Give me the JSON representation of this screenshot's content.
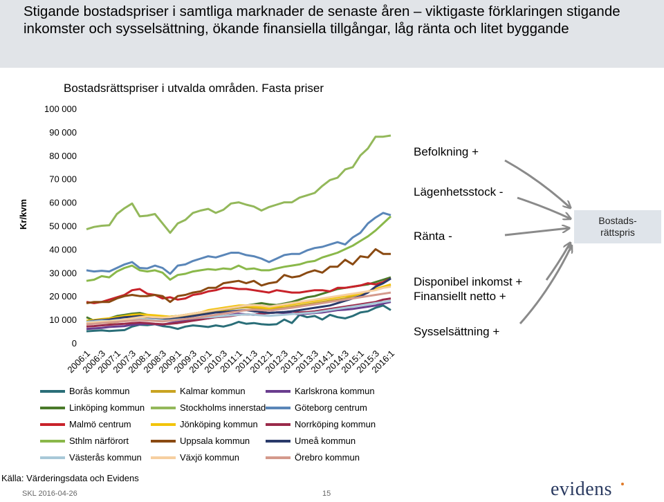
{
  "slide": {
    "heading": "Stigande bostadspriser i samtliga marknader de senaste åren – viktigaste förklaringen stigande inkomster och sysselsättning, ökande finansiella tillgångar, låg ränta och litet byggande",
    "source": "Källa: Värderingsdata och Evidens",
    "footer_left": "SKL 2016-04-26",
    "page_number": "15",
    "logo_text": "evidens"
  },
  "factors": [
    {
      "label": "Befolkning +"
    },
    {
      "label": "Lägenhetsstock -"
    },
    {
      "label": "Ränta -"
    },
    {
      "label": "Disponibel inkomst +"
    },
    {
      "label": "Finansiellt netto +"
    },
    {
      "label": "Sysselsättning +"
    }
  ],
  "result_box": {
    "line1": "Bostads-",
    "line2": "rättspris"
  },
  "chart_data": {
    "type": "line",
    "title": "Bostadsrättspriser i utvalda områden. Fasta priser",
    "ylabel": "Kr/kvm",
    "xlabel": "",
    "ylim": [
      0,
      100000
    ],
    "yticks": [
      0,
      10000,
      20000,
      30000,
      40000,
      50000,
      60000,
      70000,
      80000,
      90000,
      100000
    ],
    "ytick_labels": [
      "0",
      "10 000",
      "20 000",
      "30 000",
      "40 000",
      "50 000",
      "60 000",
      "70 000",
      "80 000",
      "90 000",
      "100 000"
    ],
    "x_tick_labels": [
      "2006:1",
      "2006:3",
      "2007:1",
      "2007:3",
      "2008:1",
      "2008:3",
      "2009:1",
      "2009:3",
      "2010:1",
      "2010:3",
      "2011:1",
      "2011:3",
      "2012:1",
      "2012:3",
      "2013:1",
      "2013:3",
      "2014:1",
      "2014:3",
      "2015:1",
      "2015:3",
      "2016:1"
    ],
    "x": [
      "2006:1",
      "2006:2",
      "2006:3",
      "2006:4",
      "2007:1",
      "2007:2",
      "2007:3",
      "2007:4",
      "2008:1",
      "2008:2",
      "2008:3",
      "2008:4",
      "2009:1",
      "2009:2",
      "2009:3",
      "2009:4",
      "2010:1",
      "2010:2",
      "2010:3",
      "2010:4",
      "2011:1",
      "2011:2",
      "2011:3",
      "2011:4",
      "2012:1",
      "2012:2",
      "2012:3",
      "2012:4",
      "2013:1",
      "2013:2",
      "2013:3",
      "2013:4",
      "2014:1",
      "2014:2",
      "2014:3",
      "2014:4",
      "2015:1",
      "2015:2",
      "2015:3",
      "2015:4",
      "2016:1"
    ],
    "grid": false,
    "legend_position": "bottom",
    "series": [
      {
        "name": "Borås kommun",
        "color": "#2a6e78",
        "values": [
          5000,
          5200,
          5400,
          5100,
          5300,
          5500,
          7000,
          7800,
          7600,
          8000,
          7200,
          6800,
          6000,
          7000,
          7500,
          7200,
          6800,
          7500,
          7000,
          7800,
          9000,
          8200,
          8500,
          8000,
          7800,
          8000,
          10000,
          8500,
          12000,
          11000,
          11500,
          10000,
          12000,
          11000,
          10500,
          11500,
          13000,
          13500,
          15000,
          16000,
          14000
        ]
      },
      {
        "name": "Kalmar kommun",
        "color": "#c9a422",
        "values": [
          8000,
          8500,
          8800,
          8600,
          9000,
          9500,
          10000,
          10500,
          11000,
          11500,
          11000,
          10800,
          11000,
          11500,
          12000,
          12500,
          13000,
          13500,
          14000,
          14500,
          15000,
          15200,
          15000,
          14800,
          14500,
          14800,
          15000,
          15500,
          16000,
          16500,
          17000,
          17500,
          18000,
          18500,
          19000,
          20000,
          21000,
          22000,
          23000,
          24000,
          24500
        ]
      },
      {
        "name": "Karlskrona kommun",
        "color": "#6a3d8e",
        "values": [
          6000,
          6200,
          6400,
          6800,
          7000,
          7200,
          7800,
          8000,
          8200,
          8000,
          7800,
          8500,
          9000,
          9500,
          10000,
          10200,
          10500,
          11000,
          11500,
          12000,
          12500,
          12200,
          12000,
          12500,
          12800,
          13000,
          12800,
          12500,
          12200,
          12500,
          12800,
          13000,
          13500,
          14000,
          14200,
          14500,
          15000,
          15500,
          16000,
          16800,
          17500
        ]
      },
      {
        "name": "Linköping kommun",
        "color": "#4a7a2a",
        "values": [
          11000,
          9500,
          9800,
          10500,
          11500,
          12000,
          12500,
          12800,
          12000,
          11500,
          11000,
          11200,
          11500,
          12000,
          12500,
          13000,
          13500,
          14000,
          14500,
          15000,
          15500,
          16000,
          16500,
          17000,
          16500,
          16200,
          16800,
          17500,
          18500,
          19500,
          20000,
          21000,
          22000,
          23000,
          23500,
          24000,
          24500,
          25000,
          26000,
          27000,
          28000
        ]
      },
      {
        "name": "Stockholms innerstad",
        "color": "#93b85a",
        "values": [
          48500,
          49500,
          50000,
          50200,
          55000,
          57500,
          59500,
          54000,
          54300,
          55000,
          51000,
          47000,
          51000,
          52500,
          55500,
          56500,
          57200,
          55500,
          56800,
          59500,
          60000,
          59000,
          58200,
          56500,
          58000,
          59000,
          60000,
          60000,
          62000,
          63000,
          64000,
          67000,
          69500,
          70500,
          74000,
          75000,
          80000,
          83000,
          88000,
          88000,
          88500
        ]
      },
      {
        "name": "Göteborg centrum",
        "color": "#5a86b8",
        "values": [
          31000,
          30500,
          30800,
          30500,
          32000,
          33500,
          34500,
          32000,
          31800,
          33000,
          32000,
          29500,
          33000,
          33500,
          35000,
          36000,
          37000,
          36500,
          37500,
          38500,
          38500,
          37500,
          37000,
          36000,
          34500,
          36000,
          37500,
          38000,
          38000,
          39500,
          40500,
          41000,
          42000,
          43000,
          42000,
          45000,
          47000,
          51000,
          53500,
          55500,
          54500
        ]
      },
      {
        "name": "Malmö centrum",
        "color": "#c8222a",
        "values": [
          17500,
          17000,
          17500,
          18500,
          19500,
          20500,
          22500,
          23000,
          21000,
          20500,
          19000,
          19500,
          18500,
          19000,
          20500,
          21000,
          22000,
          22500,
          23500,
          23500,
          23000,
          23000,
          22500,
          22000,
          21500,
          22500,
          22000,
          21500,
          21500,
          22000,
          22500,
          22500,
          22000,
          23500,
          23500,
          24000,
          24500,
          25500,
          25000,
          26000,
          27500
        ]
      },
      {
        "name": "Jönköping kommun",
        "color": "#f2c40a",
        "values": [
          9500,
          9800,
          10200,
          10500,
          11000,
          11500,
          12000,
          12200,
          12000,
          11800,
          11500,
          11200,
          11500,
          12000,
          12500,
          13000,
          14000,
          14500,
          15000,
          15500,
          16000,
          16000,
          15500,
          15200,
          14800,
          15500,
          16000,
          16500,
          17000,
          17500,
          18000,
          18500,
          19000,
          19500,
          20000,
          20500,
          21000,
          22000,
          23000,
          24000,
          25000
        ]
      },
      {
        "name": "Norrköping kommun",
        "color": "#9a2a4a",
        "values": [
          7000,
          7200,
          7500,
          7800,
          8000,
          8200,
          8500,
          8700,
          8500,
          8200,
          8000,
          8200,
          8500,
          9000,
          9500,
          10000,
          10500,
          11000,
          11200,
          11500,
          12000,
          12200,
          12000,
          12500,
          12800,
          13000,
          13200,
          13500,
          13000,
          13200,
          13500,
          14000,
          14500,
          15000,
          15500,
          16000,
          16500,
          17000,
          17500,
          18500,
          19000
        ]
      },
      {
        "name": "Sthlm närförort",
        "color": "#8ab84a",
        "values": [
          26500,
          27000,
          28500,
          28000,
          30500,
          32000,
          33000,
          31000,
          30500,
          31000,
          30000,
          27000,
          29000,
          29500,
          30500,
          31000,
          31500,
          31200,
          31800,
          31500,
          33000,
          31500,
          31800,
          31000,
          31000,
          31800,
          32500,
          33000,
          33500,
          34500,
          35000,
          36500,
          37500,
          38500,
          40000,
          41500,
          43500,
          45500,
          48000,
          51000,
          54000
        ]
      },
      {
        "name": "Uppsala kommun",
        "color": "#8a4a12",
        "values": [
          17000,
          17500,
          17500,
          17500,
          19000,
          20000,
          20500,
          20000,
          20000,
          20500,
          20000,
          17500,
          20000,
          20500,
          21500,
          22000,
          23500,
          23500,
          25500,
          26000,
          26500,
          25500,
          26500,
          24500,
          25500,
          26000,
          29000,
          28000,
          28500,
          30000,
          31000,
          30000,
          32500,
          32500,
          35500,
          33500,
          37000,
          36500,
          40000,
          38000,
          38000
        ]
      },
      {
        "name": "Umeå kommun",
        "color": "#2a3a6a",
        "values": [
          9000,
          9500,
          9800,
          10000,
          10500,
          11000,
          11200,
          11500,
          11000,
          10800,
          10500,
          10200,
          10500,
          11000,
          11500,
          12000,
          12500,
          13000,
          13200,
          13500,
          13800,
          14000,
          13500,
          13200,
          12800,
          13000,
          13200,
          13500,
          14000,
          14500,
          15000,
          15500,
          16000,
          17000,
          18000,
          19000,
          20000,
          21500,
          24000,
          25500,
          27500
        ]
      },
      {
        "name": "Västerås kommun",
        "color": "#a8c8d8",
        "values": [
          9000,
          9200,
          9500,
          9400,
          9800,
          10000,
          10200,
          10300,
          10000,
          9800,
          9500,
          9700,
          10000,
          10200,
          10500,
          10800,
          11000,
          11200,
          11500,
          11800,
          12000,
          12200,
          12000,
          11800,
          11600,
          11800,
          12000,
          12300,
          12500,
          12800,
          13000,
          13500,
          14000,
          14500,
          15000,
          15500,
          16000,
          16500,
          17000,
          17500,
          18000
        ]
      },
      {
        "name": "Växjö kommun",
        "color": "#f6cfa0",
        "values": [
          8500,
          8800,
          9000,
          9200,
          9500,
          10000,
          10500,
          11000,
          11200,
          11000,
          10800,
          11000,
          11500,
          12000,
          12500,
          13000,
          13500,
          14000,
          14500,
          15000,
          15500,
          16000,
          16200,
          16000,
          15500,
          16000,
          16500,
          17000,
          17500,
          18000,
          18500,
          19000,
          19500,
          20000,
          20500,
          21000,
          21500,
          22000,
          22500,
          23500,
          24000
        ]
      },
      {
        "name": "Örebro kommun",
        "color": "#d49a8c",
        "values": [
          8000,
          8200,
          8500,
          8800,
          9000,
          9300,
          9500,
          9800,
          9600,
          9400,
          9200,
          9500,
          9800,
          10200,
          10600,
          11000,
          11500,
          12000,
          12500,
          13000,
          13500,
          14000,
          14200,
          14000,
          13800,
          14200,
          14600,
          15000,
          15500,
          16000,
          16500,
          17000,
          17500,
          18000,
          18500,
          19000,
          19500,
          20000,
          20500,
          21000,
          21500
        ]
      }
    ]
  }
}
